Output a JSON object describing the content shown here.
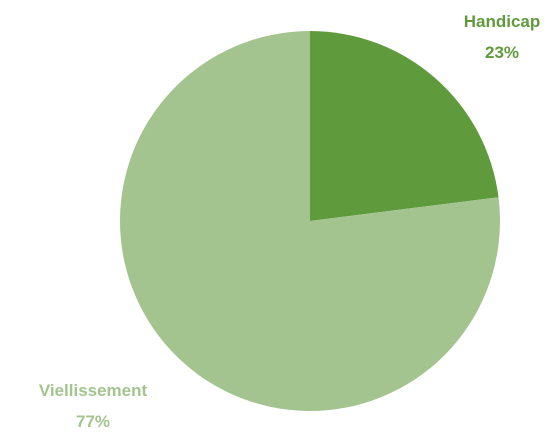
{
  "chart_data": {
    "type": "pie",
    "slices": [
      {
        "label": "Handicap",
        "value": 23,
        "value_label": "23%",
        "color": "#5f9a3d"
      },
      {
        "label": "Viellissement",
        "value": 77,
        "value_label": "77%",
        "color": "#a3c48f"
      }
    ],
    "start_angle_deg": 0,
    "direction": "clockwise",
    "title": ""
  }
}
